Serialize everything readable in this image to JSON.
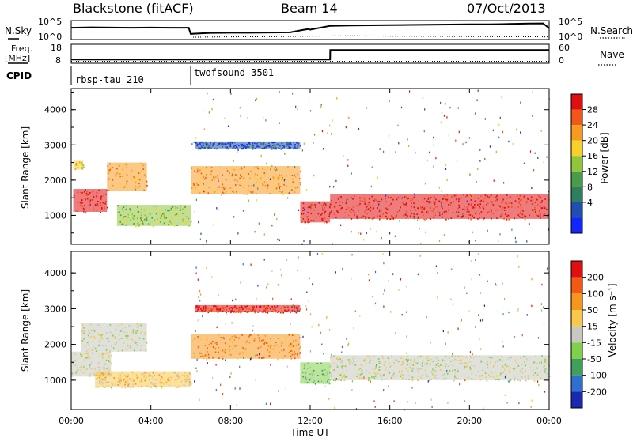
{
  "header": {
    "station": "Blackstone (fitACF)",
    "beam": "Beam 14",
    "date": "07/Oct/2013"
  },
  "chart_data": [
    {
      "type": "line",
      "name": "noise-panel",
      "left_label": "N.Sky",
      "right_label": "N.Search",
      "left_ticks": [
        "10^5",
        "10^0"
      ],
      "right_ticks": [
        "10^5",
        "10^0"
      ],
      "series": [
        {
          "style": "solid",
          "x": [
            0,
            1,
            2,
            3,
            4,
            5,
            5.9,
            6.0,
            7,
            8,
            9,
            10,
            11,
            11.6,
            11.9,
            12,
            13,
            14,
            15,
            16,
            17,
            18,
            19,
            20,
            21,
            22,
            23,
            23.7,
            24
          ],
          "y": [
            0.62,
            0.64,
            0.63,
            0.62,
            0.63,
            0.62,
            0.62,
            0.3,
            0.35,
            0.36,
            0.36,
            0.37,
            0.38,
            0.5,
            0.55,
            0.52,
            0.72,
            0.74,
            0.75,
            0.76,
            0.77,
            0.78,
            0.79,
            0.8,
            0.8,
            0.82,
            0.84,
            0.85,
            0.6
          ]
        },
        {
          "style": "dotted",
          "x": [
            6,
            8,
            10,
            12,
            14,
            16,
            18,
            20,
            22,
            24
          ],
          "y": [
            0.12,
            0.14,
            0.15,
            0.18,
            0.2,
            0.18,
            0.17,
            0.16,
            0.15,
            0.14
          ]
        }
      ]
    },
    {
      "type": "line",
      "name": "freq-nave-panel",
      "left_label": "Freq.",
      "left_unit": "[MHz]",
      "right_label": "Nave",
      "left_ticks": [
        "18",
        "8"
      ],
      "right_ticks": [
        "60",
        "0"
      ],
      "series": [
        {
          "style": "solid",
          "x": [
            0,
            6,
            13,
            13.01,
            24
          ],
          "y": [
            10,
            10,
            10,
            15,
            15
          ]
        },
        {
          "style": "dotted",
          "x": [
            0,
            24
          ],
          "y": [
            9,
            9
          ]
        }
      ]
    },
    {
      "type": "table",
      "name": "cpid",
      "label": "CPID",
      "modes": [
        {
          "start": 0,
          "text": "rbsp-tau 210"
        },
        {
          "start": 6,
          "text": "twofsound 3501"
        }
      ]
    },
    {
      "type": "heatmap",
      "name": "power-panel",
      "ylabel": "Slant Range [km]",
      "yticks": [
        1000,
        2000,
        3000,
        4000
      ],
      "ylim": [
        180,
        4600
      ],
      "colorbar": {
        "label": "Power [dB]",
        "ticks": [
          "4",
          "8",
          "12",
          "16",
          "20",
          "24",
          "28"
        ],
        "colors": [
          "#1226ff",
          "#1f4fb0",
          "#2f7f5f",
          "#4c9b4c",
          "#8fc63a",
          "#f7d02a",
          "#f79a20",
          "#f2561a",
          "#e01010"
        ]
      },
      "bands": [
        {
          "t0": 0.1,
          "t1": 0.6,
          "r0": 2300,
          "r1": 2550,
          "level": 5
        },
        {
          "t0": 0.1,
          "t1": 1.8,
          "r0": 1100,
          "r1": 1750,
          "level": 8
        },
        {
          "t0": 1.8,
          "t1": 3.8,
          "r0": 1700,
          "r1": 2500,
          "level": 6
        },
        {
          "t0": 2.3,
          "t1": 6.0,
          "r0": 700,
          "r1": 1300,
          "level": 4
        },
        {
          "t0": 6.0,
          "t1": 11.5,
          "r0": 1600,
          "r1": 2400,
          "level": 6
        },
        {
          "t0": 6.2,
          "t1": 11.5,
          "r0": 2900,
          "r1": 3100,
          "level": 1
        },
        {
          "t0": 11.5,
          "t1": 13.0,
          "r0": 800,
          "r1": 1400,
          "level": 8
        },
        {
          "t0": 13.0,
          "t1": 24.0,
          "r0": 900,
          "r1": 1600,
          "level": 8
        }
      ]
    },
    {
      "type": "heatmap",
      "name": "velocity-panel",
      "ylabel": "Slant Range [km]",
      "xlabel": "Time UT",
      "xticks": [
        "00:00",
        "04:00",
        "08:00",
        "12:00",
        "16:00",
        "20:00",
        "00:00"
      ],
      "yticks": [
        1000,
        2000,
        3000,
        4000
      ],
      "ylim": [
        180,
        4600
      ],
      "colorbar": {
        "label": "Velocity [m s⁻¹]",
        "ticks": [
          "200",
          "100",
          "50",
          "15",
          "-15",
          "-50",
          "-100",
          "-200"
        ],
        "colors": [
          "#1a2ab0",
          "#2f6fd0",
          "#3ea05a",
          "#7fd04a",
          "#c8c8c0",
          "#f7c84a",
          "#f7961e",
          "#f25a14",
          "#e01010"
        ]
      },
      "bands": [
        {
          "t0": 0.0,
          "t1": 2.0,
          "r0": 1100,
          "r1": 1800,
          "level": 4
        },
        {
          "t0": 0.5,
          "t1": 3.8,
          "r0": 1800,
          "r1": 2600,
          "level": 4
        },
        {
          "t0": 1.2,
          "t1": 6.0,
          "r0": 800,
          "r1": 1250,
          "level": 5
        },
        {
          "t0": 6.0,
          "t1": 11.5,
          "r0": 1600,
          "r1": 2300,
          "level": 6
        },
        {
          "t0": 6.2,
          "t1": 11.5,
          "r0": 2900,
          "r1": 3100,
          "level": 8
        },
        {
          "t0": 11.5,
          "t1": 13.0,
          "r0": 900,
          "r1": 1500,
          "level": 3
        },
        {
          "t0": 13.0,
          "t1": 24.0,
          "r0": 1000,
          "r1": 1700,
          "level": 4
        }
      ]
    }
  ]
}
